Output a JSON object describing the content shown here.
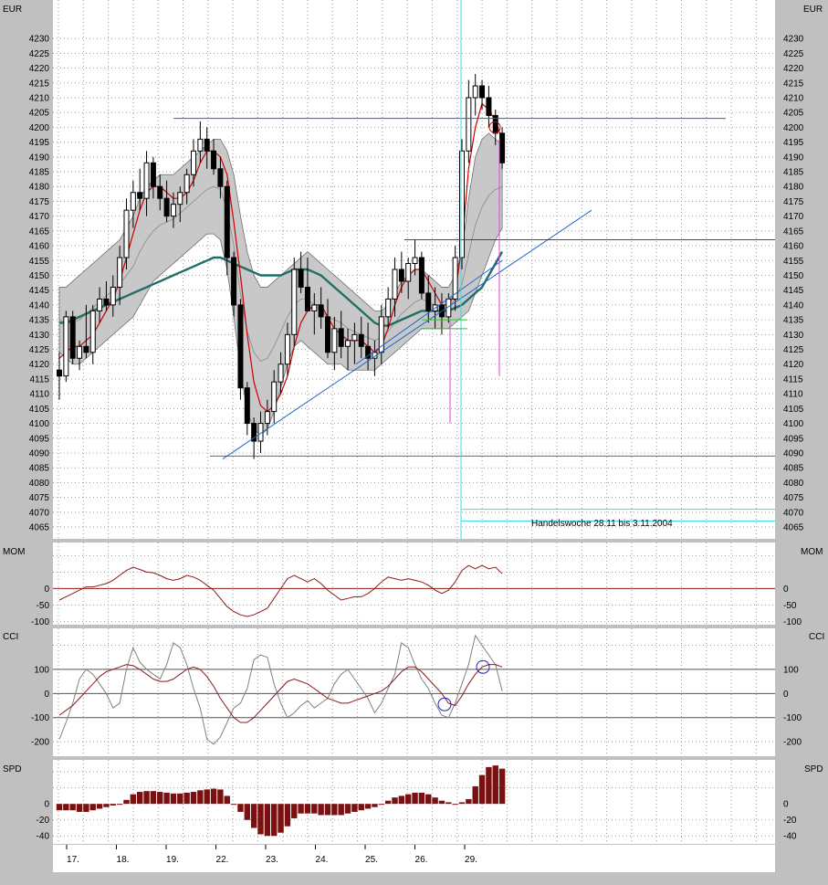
{
  "currency_label": "EUR",
  "annotation": "Handelswoche 28.11 bis 3.11.2004",
  "colors": {
    "panel_bg": "#ffffff",
    "frame_bg": "#c0c0c0",
    "grid": "#9a9a9a",
    "up_candle": "#ffffff",
    "down_candle": "#000000",
    "band_fill": "#c8c8c8",
    "ma_slow": "#1f6f66",
    "ma_fast": "#cc0000",
    "trend_line": "#1e66c8",
    "cursor": "#40d8e8",
    "indicator_line": "#8b1a1a",
    "spd_bar": "#7a1010",
    "magenta": "#e040e0",
    "green": "#30c030"
  },
  "chart_data": [
    {
      "panel": "price",
      "type": "candlestick",
      "unit": "EUR",
      "ylim": [
        4061,
        4243
      ],
      "yticks": [
        4065,
        4070,
        4075,
        4080,
        4085,
        4090,
        4095,
        4100,
        4105,
        4110,
        4115,
        4120,
        4125,
        4130,
        4135,
        4140,
        4145,
        4150,
        4155,
        4160,
        4165,
        4170,
        4175,
        4180,
        4185,
        4190,
        4195,
        4200,
        4205,
        4210,
        4215,
        4220,
        4225,
        4230
      ],
      "x_labels": [
        "17.",
        "18.",
        "19.",
        "22.",
        "23.",
        "24.",
        "25.",
        "26.",
        "29."
      ],
      "bars": [
        [
          4118,
          4124,
          4108,
          4116
        ],
        [
          4116,
          4138,
          4114,
          4136
        ],
        [
          4136,
          4138,
          4120,
          4122
        ],
        [
          4122,
          4128,
          4118,
          4126
        ],
        [
          4126,
          4140,
          4122,
          4124
        ],
        [
          4124,
          4140,
          4120,
          4138
        ],
        [
          4138,
          4146,
          4134,
          4142
        ],
        [
          4142,
          4148,
          4138,
          4140
        ],
        [
          4140,
          4150,
          4136,
          4146
        ],
        [
          4146,
          4160,
          4140,
          4156
        ],
        [
          4156,
          4176,
          4152,
          4172
        ],
        [
          4172,
          4182,
          4166,
          4178
        ],
        [
          4178,
          4186,
          4172,
          4176
        ],
        [
          4176,
          4192,
          4170,
          4188
        ],
        [
          4188,
          4190,
          4176,
          4180
        ],
        [
          4180,
          4184,
          4172,
          4176
        ],
        [
          4176,
          4182,
          4168,
          4170
        ],
        [
          4170,
          4178,
          4166,
          4174
        ],
        [
          4174,
          4180,
          4168,
          4178
        ],
        [
          4178,
          4186,
          4174,
          4184
        ],
        [
          4184,
          4196,
          4180,
          4192
        ],
        [
          4192,
          4202,
          4188,
          4196
        ],
        [
          4196,
          4200,
          4186,
          4192
        ],
        [
          4192,
          4196,
          4184,
          4186
        ],
        [
          4186,
          4190,
          4176,
          4180
        ],
        [
          4180,
          4182,
          4150,
          4156
        ],
        [
          4156,
          4158,
          4136,
          4140
        ],
        [
          4140,
          4142,
          4108,
          4112
        ],
        [
          4112,
          4114,
          4096,
          4100
        ],
        [
          4100,
          4102,
          4088,
          4094
        ],
        [
          4094,
          4104,
          4090,
          4100
        ],
        [
          4100,
          4108,
          4096,
          4104
        ],
        [
          4104,
          4118,
          4100,
          4114
        ],
        [
          4114,
          4124,
          4110,
          4120
        ],
        [
          4120,
          4134,
          4116,
          4130
        ],
        [
          4130,
          4156,
          4126,
          4152
        ],
        [
          4152,
          4158,
          4144,
          4146
        ],
        [
          4146,
          4156,
          4140,
          4138
        ],
        [
          4138,
          4144,
          4130,
          4140
        ],
        [
          4140,
          4146,
          4132,
          4136
        ],
        [
          4136,
          4142,
          4122,
          4124
        ],
        [
          4124,
          4136,
          4118,
          4132
        ],
        [
          4132,
          4138,
          4122,
          4126
        ],
        [
          4126,
          4132,
          4118,
          4128
        ],
        [
          4128,
          4134,
          4120,
          4130
        ],
        [
          4130,
          4136,
          4122,
          4126
        ],
        [
          4126,
          4134,
          4118,
          4122
        ],
        [
          4122,
          4128,
          4116,
          4124
        ],
        [
          4124,
          4140,
          4120,
          4136
        ],
        [
          4136,
          4146,
          4132,
          4142
        ],
        [
          4142,
          4156,
          4136,
          4152
        ],
        [
          4152,
          4158,
          4144,
          4148
        ],
        [
          4148,
          4156,
          4142,
          4154
        ],
        [
          4154,
          4162,
          4150,
          4156
        ],
        [
          4156,
          4158,
          4142,
          4144
        ],
        [
          4144,
          4150,
          4134,
          4138
        ],
        [
          4138,
          4146,
          4132,
          4140
        ],
        [
          4140,
          4144,
          4130,
          4136
        ],
        [
          4136,
          4144,
          4134,
          4142
        ],
        [
          4142,
          4160,
          4138,
          4156
        ],
        [
          4156,
          4196,
          4152,
          4192
        ],
        [
          4192,
          4216,
          4188,
          4210
        ],
        [
          4210,
          4218,
          4204,
          4214
        ],
        [
          4214,
          4216,
          4206,
          4210
        ],
        [
          4210,
          4214,
          4200,
          4204
        ],
        [
          4204,
          4206,
          4194,
          4198
        ],
        [
          4198,
          4200,
          4186,
          4188
        ]
      ],
      "bands": {
        "upper": [
          4146,
          4146,
          4148,
          4150,
          4152,
          4154,
          4156,
          4158,
          4160,
          4162,
          4166,
          4170,
          4176,
          4180,
          4182,
          4184,
          4184,
          4184,
          4186,
          4188,
          4190,
          4192,
          4194,
          4196,
          4196,
          4192,
          4184,
          4170,
          4158,
          4150,
          4146,
          4146,
          4148,
          4150,
          4152,
          4154,
          4156,
          4158,
          4156,
          4154,
          4152,
          4150,
          4148,
          4146,
          4144,
          4142,
          4140,
          4138,
          4138,
          4140,
          4144,
          4148,
          4150,
          4152,
          4152,
          4150,
          4148,
          4146,
          4146,
          4150,
          4158,
          4176,
          4190,
          4196,
          4198,
          4196,
          4194
        ],
        "lower": [
          4124,
          4122,
          4120,
          4120,
          4122,
          4124,
          4126,
          4128,
          4130,
          4132,
          4134,
          4136,
          4140,
          4144,
          4148,
          4150,
          4152,
          4154,
          4156,
          4158,
          4160,
          4162,
          4164,
          4164,
          4162,
          4152,
          4136,
          4118,
          4104,
          4098,
          4096,
          4098,
          4104,
          4112,
          4120,
          4126,
          4128,
          4126,
          4124,
          4122,
          4120,
          4120,
          4120,
          4118,
          4118,
          4118,
          4118,
          4118,
          4120,
          4122,
          4124,
          4126,
          4128,
          4130,
          4132,
          4132,
          4132,
          4132,
          4132,
          4134,
          4136,
          4138,
          4144,
          4150,
          4156,
          4162,
          4166
        ]
      },
      "ma_slow": [
        4134,
        4134,
        4135,
        4136,
        4137,
        4138,
        4139,
        4140,
        4141,
        4142,
        4143,
        4144,
        4145,
        4146,
        4147,
        4148,
        4149,
        4150,
        4151,
        4152,
        4153,
        4154,
        4155,
        4156,
        4156,
        4155,
        4154,
        4153,
        4152,
        4151,
        4150,
        4150,
        4150,
        4150,
        4151,
        4152,
        4152,
        4152,
        4151,
        4150,
        4148,
        4146,
        4144,
        4142,
        4140,
        4138,
        4136,
        4134,
        4133,
        4133,
        4134,
        4135,
        4136,
        4137,
        4138,
        4138,
        4138,
        4138,
        4138,
        4139,
        4140,
        4142,
        4144,
        4146,
        4150,
        4154,
        4158
      ],
      "ma_fast": [
        4122,
        4124,
        4126,
        4126,
        4128,
        4130,
        4134,
        4138,
        4142,
        4148,
        4156,
        4164,
        4172,
        4178,
        4180,
        4180,
        4178,
        4176,
        4176,
        4178,
        4182,
        4188,
        4192,
        4192,
        4190,
        4184,
        4168,
        4150,
        4130,
        4114,
        4106,
        4104,
        4106,
        4110,
        4116,
        4126,
        4134,
        4138,
        4140,
        4140,
        4136,
        4132,
        4130,
        4128,
        4128,
        4128,
        4126,
        4124,
        4126,
        4132,
        4140,
        4146,
        4150,
        4152,
        4152,
        4148,
        4144,
        4140,
        4140,
        4144,
        4160,
        4186,
        4200,
        4208,
        4206,
        4202,
        4196
      ]
    },
    {
      "panel": "MOM",
      "type": "line",
      "ylim": [
        -110,
        140
      ],
      "yticks": [
        0,
        -50,
        -100
      ],
      "values": [
        -35,
        -25,
        -15,
        -5,
        5,
        5,
        10,
        15,
        25,
        40,
        55,
        65,
        58,
        50,
        48,
        40,
        30,
        25,
        30,
        40,
        35,
        25,
        10,
        -5,
        -30,
        -55,
        -70,
        -80,
        -85,
        -80,
        -70,
        -60,
        -30,
        0,
        30,
        40,
        30,
        20,
        30,
        15,
        -5,
        -20,
        -35,
        -30,
        -25,
        -25,
        -15,
        0,
        20,
        35,
        30,
        25,
        30,
        25,
        20,
        10,
        -5,
        -15,
        -5,
        20,
        55,
        70,
        60,
        70,
        60,
        65,
        45
      ]
    },
    {
      "panel": "CCI",
      "type": "line",
      "ylim": [
        -260,
        270
      ],
      "yticks": [
        100,
        0,
        -100,
        -200
      ],
      "series": [
        {
          "values": [
            -190,
            -120,
            -40,
            60,
            100,
            80,
            40,
            0,
            -60,
            -40,
            100,
            190,
            130,
            100,
            80,
            60,
            120,
            210,
            190,
            120,
            20,
            -60,
            -190,
            -210,
            -180,
            -120,
            -60,
            -40,
            20,
            140,
            160,
            150,
            40,
            -40,
            -100,
            -80,
            -50,
            -30,
            -60,
            -40,
            -20,
            40,
            80,
            100,
            60,
            20,
            -20,
            -80,
            -40,
            20,
            80,
            210,
            190,
            120,
            60,
            20,
            -40,
            -90,
            -100,
            -40,
            40,
            120,
            240,
            200,
            160,
            120,
            10
          ]
        },
        {
          "values": [
            -90,
            -70,
            -50,
            -20,
            10,
            40,
            70,
            90,
            100,
            110,
            120,
            115,
            100,
            80,
            60,
            50,
            50,
            60,
            80,
            100,
            110,
            100,
            70,
            30,
            -20,
            -60,
            -100,
            -120,
            -120,
            -100,
            -70,
            -40,
            -10,
            20,
            50,
            60,
            50,
            40,
            20,
            0,
            -20,
            -30,
            -40,
            -40,
            -30,
            -20,
            -10,
            0,
            10,
            30,
            60,
            90,
            110,
            110,
            90,
            60,
            30,
            0,
            -40,
            -50,
            -10,
            40,
            80,
            110,
            120,
            120,
            110
          ]
        }
      ]
    },
    {
      "panel": "SPD",
      "type": "bar",
      "ylim": [
        -50,
        55
      ],
      "yticks": [
        0,
        -20,
        -40
      ],
      "values": [
        -8,
        -8,
        -8,
        -10,
        -10,
        -8,
        -6,
        -4,
        -2,
        0,
        5,
        12,
        15,
        16,
        16,
        15,
        14,
        13,
        13,
        14,
        15,
        17,
        18,
        19,
        18,
        10,
        0,
        -10,
        -20,
        -30,
        -38,
        -40,
        -40,
        -36,
        -28,
        -18,
        -12,
        -12,
        -12,
        -14,
        -14,
        -14,
        -14,
        -12,
        -10,
        -8,
        -6,
        -4,
        0,
        4,
        8,
        10,
        12,
        14,
        14,
        12,
        8,
        4,
        2,
        0,
        2,
        6,
        22,
        36,
        46,
        48,
        44
      ]
    }
  ]
}
